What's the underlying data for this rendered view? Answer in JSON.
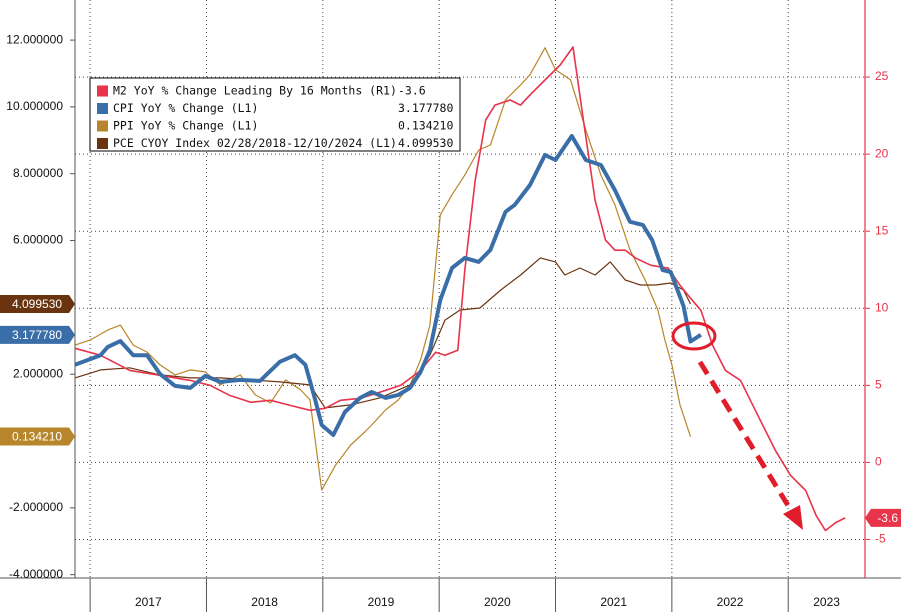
{
  "chart_data": {
    "type": "line",
    "categories": [
      "2017",
      "2018",
      "2019",
      "2020",
      "2021",
      "2022",
      "2023"
    ],
    "xlim": [
      2016.87,
      2023.66
    ],
    "xticks": [
      2017,
      2018,
      2019,
      2020,
      2021,
      2022,
      2023
    ],
    "ylim": [
      -4.1,
      13.2
    ],
    "yticks": [
      {
        "value": 12,
        "label": "12.000000"
      },
      {
        "value": 10,
        "label": "10.000000"
      },
      {
        "value": 8,
        "label": "8.000000"
      },
      {
        "value": 6,
        "label": "6.000000"
      },
      {
        "value": 2,
        "label": "2.000000"
      },
      {
        "value": -2,
        "label": "-2.000000"
      },
      {
        "value": -4,
        "label": "-4.000000"
      }
    ],
    "y2lim": [
      -7.5,
      30
    ],
    "y2ticks": [
      25,
      20,
      15,
      10,
      5,
      0,
      -5
    ],
    "grid": true,
    "series": [
      {
        "name": "M2 YoY % Change Leading By 16 Months (R1)",
        "color": "#e8334a",
        "axis": "y2",
        "line_width": 1.6,
        "latest": -3.6,
        "x": [
          2016.87,
          2017.09,
          2017.34,
          2017.6,
          2017.86,
          2018.03,
          2018.2,
          2018.38,
          2018.55,
          2018.72,
          2018.89,
          2019.02,
          2019.15,
          2019.32,
          2019.49,
          2019.67,
          2019.75,
          2019.84,
          2019.97,
          2020.05,
          2020.16,
          2020.22,
          2020.31,
          2020.4,
          2020.48,
          2020.61,
          2020.7,
          2020.78,
          2020.91,
          2021.04,
          2021.15,
          2021.24,
          2021.34,
          2021.43,
          2021.51,
          2021.6,
          2021.69,
          2021.82,
          2021.97,
          2022.07,
          2022.16,
          2022.25,
          2022.35,
          2022.46,
          2022.59,
          2022.76,
          2022.89,
          2023.02,
          2023.15,
          2023.24,
          2023.32,
          2023.41,
          2023.49
        ],
        "values": [
          7.4,
          6.95,
          5.97,
          5.65,
          5.32,
          5.0,
          4.35,
          3.9,
          4.03,
          3.7,
          3.38,
          3.51,
          4.03,
          4.16,
          4.55,
          5.0,
          5.45,
          5.97,
          7.14,
          6.95,
          7.27,
          12.47,
          18.31,
          22.21,
          23.18,
          23.51,
          23.18,
          23.83,
          24.81,
          25.78,
          26.95,
          22.21,
          17.01,
          14.42,
          13.77,
          13.77,
          13.25,
          12.79,
          12.6,
          11.49,
          10.65,
          9.87,
          7.6,
          5.97,
          5.32,
          2.73,
          0.78,
          -0.84,
          -1.82,
          -3.44,
          -4.42,
          -3.9,
          -3.6
        ]
      },
      {
        "name": "CPI YoY % Change (L1)",
        "color": "#3a6ea8",
        "axis": "y",
        "line_width": 4,
        "latest": {
          "value": 3.17778,
          "label": "3.177780"
        },
        "x": [
          2016.87,
          2017.09,
          2017.15,
          2017.26,
          2017.37,
          2017.49,
          2017.6,
          2017.73,
          2017.86,
          2017.99,
          2018.12,
          2018.29,
          2018.46,
          2018.63,
          2018.76,
          2018.85,
          2018.93,
          2018.99,
          2019.09,
          2019.19,
          2019.32,
          2019.42,
          2019.54,
          2019.65,
          2019.75,
          2019.84,
          2019.92,
          2020.01,
          2020.11,
          2020.22,
          2020.34,
          2020.44,
          2020.57,
          2020.65,
          2020.78,
          2020.91,
          2021.0,
          2021.14,
          2021.26,
          2021.39,
          2021.51,
          2021.64,
          2021.75,
          2021.83,
          2021.92,
          2021.99,
          2022.1,
          2022.16,
          2022.25
        ],
        "values": [
          2.28,
          2.57,
          2.81,
          2.99,
          2.57,
          2.57,
          2.01,
          1.65,
          1.59,
          1.95,
          1.77,
          1.83,
          1.8,
          2.37,
          2.57,
          2.28,
          1.29,
          0.48,
          0.18,
          0.87,
          1.29,
          1.47,
          1.29,
          1.38,
          1.59,
          2.07,
          2.72,
          4.22,
          5.18,
          5.48,
          5.36,
          5.72,
          6.86,
          7.07,
          7.66,
          8.56,
          8.41,
          9.13,
          8.41,
          8.26,
          7.51,
          6.56,
          6.47,
          6.02,
          5.12,
          5.06,
          4.04,
          2.98,
          3.18
        ]
      },
      {
        "name": "PPI YoY % Change (L1)",
        "color": "#b8862a",
        "axis": "y",
        "line_width": 1.2,
        "latest": {
          "value": 0.13421,
          "label": "0.134210"
        },
        "x": [
          2016.87,
          2017.0,
          2017.15,
          2017.26,
          2017.37,
          2017.49,
          2017.6,
          2017.73,
          2017.86,
          2017.99,
          2018.12,
          2018.29,
          2018.42,
          2018.55,
          2018.68,
          2018.81,
          2018.89,
          2018.99,
          2019.11,
          2019.24,
          2019.36,
          2019.42,
          2019.54,
          2019.65,
          2019.75,
          2019.84,
          2019.92,
          2020.01,
          2020.11,
          2020.22,
          2020.34,
          2020.44,
          2020.57,
          2020.7,
          2020.78,
          2020.91,
          2021.0,
          2021.13,
          2021.26,
          2021.39,
          2021.51,
          2021.64,
          2021.77,
          2021.88,
          2021.94,
          2022.0,
          2022.07,
          2022.16
        ],
        "values": [
          2.87,
          3.02,
          3.32,
          3.47,
          2.87,
          2.66,
          2.28,
          1.98,
          2.13,
          2.07,
          1.68,
          1.98,
          1.38,
          1.14,
          1.83,
          1.53,
          1.23,
          -1.47,
          -0.72,
          -0.12,
          0.27,
          0.48,
          0.93,
          1.23,
          1.68,
          2.43,
          3.47,
          6.77,
          7.37,
          7.96,
          8.71,
          8.86,
          10.21,
          10.66,
          10.96,
          11.77,
          11.11,
          10.81,
          9.31,
          7.96,
          7.07,
          5.72,
          4.82,
          3.92,
          3.02,
          2.28,
          1.08,
          0.13
        ]
      },
      {
        "name": "PCE CYOY Index 02/28/2018-12/10/2024 (L1)",
        "color": "#6b3410",
        "axis": "y",
        "line_width": 1.2,
        "latest": {
          "value": 4.09953,
          "label": "4.099530"
        },
        "x": [
          2016.87,
          2017.09,
          2017.34,
          2017.6,
          2017.86,
          2018.12,
          2018.38,
          2018.63,
          2018.89,
          2019.02,
          2019.24,
          2019.49,
          2019.75,
          2019.92,
          2020.05,
          2020.18,
          2020.35,
          2020.53,
          2020.7,
          2020.87,
          2021.0,
          2021.08,
          2021.21,
          2021.34,
          2021.47,
          2021.6,
          2021.73,
          2021.86,
          2021.99,
          2022.1,
          2022.16
        ],
        "values": [
          1.89,
          2.13,
          2.19,
          1.98,
          1.89,
          1.89,
          1.83,
          1.77,
          1.68,
          0.99,
          1.08,
          1.29,
          1.68,
          2.57,
          3.62,
          3.92,
          3.98,
          4.52,
          4.97,
          5.48,
          5.36,
          4.97,
          5.18,
          4.97,
          5.36,
          4.82,
          4.67,
          4.67,
          4.73,
          4.52,
          4.1
        ]
      }
    ]
  }
}
